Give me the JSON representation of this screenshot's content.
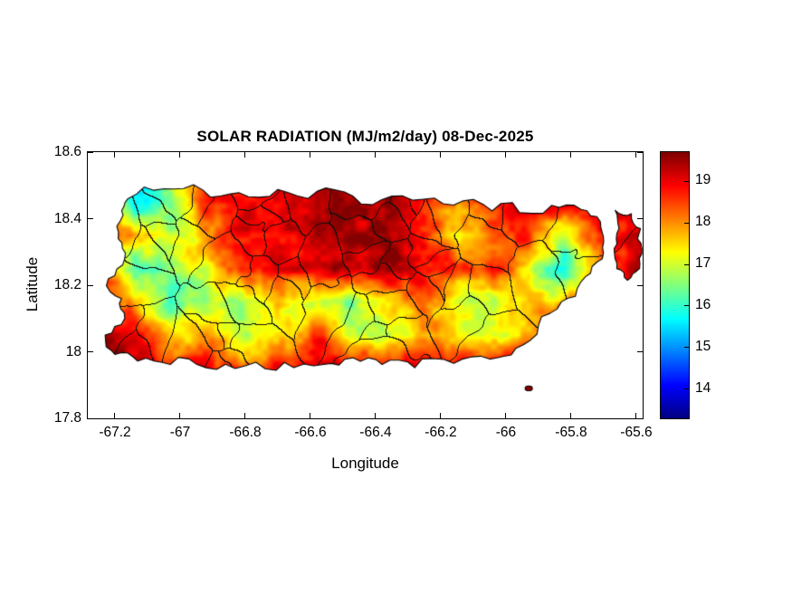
{
  "figure": {
    "title": "SOLAR RADIATION (MJ/m2/day) 08-Dec-2025",
    "xlabel": "Longitude",
    "ylabel": "Latitude"
  },
  "axes": {
    "xlim": [
      -67.2833,
      -65.5805
    ],
    "ylim": [
      17.8,
      18.6
    ],
    "xticks": [
      -67.2,
      -67.0,
      -66.8,
      -66.6,
      -66.4,
      -66.2,
      -66.0,
      -65.8,
      -65.6
    ],
    "xtick_labels": [
      "-67.2",
      "-67",
      "-66.8",
      "-66.6",
      "-66.4",
      "-66.2",
      "-66",
      "-65.8",
      "-65.6"
    ],
    "yticks": [
      17.8,
      18.0,
      18.2,
      18.4,
      18.6
    ],
    "ytick_labels": [
      "17.8",
      "18",
      "18.2",
      "18.4",
      "18.6"
    ]
  },
  "colorbar": {
    "colormap": "jet",
    "clim": [
      13.3,
      19.7
    ],
    "tick_values": [
      14,
      15,
      16,
      17,
      18,
      19
    ],
    "tick_labels": [
      "14",
      "15",
      "16",
      "17",
      "18",
      "19"
    ]
  },
  "chart_data": {
    "type": "heatmap",
    "title": "SOLAR RADIATION (MJ/m2/day) 08-Dec-2025",
    "quantity": "solar radiation",
    "units": "MJ/m2/day",
    "date": "08-Dec-2025",
    "region": "Puerto Rico",
    "overlay": "municipality-boundaries",
    "value_range_shown": [
      14,
      19
    ],
    "grid_lon": [
      -67.25,
      -67.14,
      -67.03,
      -66.92,
      -66.81,
      -66.7,
      -66.59,
      -66.48,
      -66.37,
      -66.26,
      -66.15,
      -66.04,
      -65.93,
      -65.82,
      -65.71,
      -65.6
    ],
    "grid_lat": [
      18.45,
      18.35,
      18.25,
      18.15,
      18.05,
      17.95
    ],
    "values": [
      [
        19.0,
        15.8,
        17.0,
        19.0,
        19.2,
        19.3,
        19.3,
        19.2,
        19.3,
        19.0,
        18.6,
        19.0,
        19.2,
        19.0,
        18.8,
        19.0
      ],
      [
        18.8,
        17.5,
        16.8,
        17.8,
        18.8,
        19.3,
        19.4,
        19.3,
        19.2,
        18.4,
        17.4,
        18.2,
        18.8,
        16.8,
        18.4,
        18.8
      ],
      [
        19.0,
        15.6,
        16.6,
        17.2,
        18.6,
        19.2,
        19.4,
        19.4,
        19.2,
        18.8,
        18.2,
        18.8,
        17.6,
        15.6,
        17.8,
        19.0
      ],
      [
        19.0,
        17.6,
        16.2,
        17.0,
        16.6,
        18.2,
        17.0,
        16.4,
        17.6,
        18.2,
        16.8,
        17.2,
        18.2,
        17.8,
        18.8,
        19.2
      ],
      [
        19.2,
        18.6,
        17.6,
        18.2,
        17.0,
        17.6,
        18.6,
        17.0,
        16.6,
        17.2,
        17.6,
        16.8,
        17.8,
        19.0,
        19.2,
        19.3
      ],
      [
        19.3,
        19.2,
        19.0,
        19.2,
        18.8,
        19.0,
        19.2,
        18.8,
        18.6,
        18.8,
        19.0,
        19.2,
        19.3,
        19.3,
        19.2,
        19.2
      ]
    ],
    "outline_main": [
      [
        -67.16,
        18.46
      ],
      [
        -67.05,
        18.49
      ],
      [
        -66.93,
        18.486
      ],
      [
        -66.82,
        18.478
      ],
      [
        -66.7,
        18.488
      ],
      [
        -66.58,
        18.482
      ],
      [
        -66.47,
        18.468
      ],
      [
        -66.35,
        18.468
      ],
      [
        -66.22,
        18.462
      ],
      [
        -66.1,
        18.458
      ],
      [
        -65.98,
        18.448
      ],
      [
        -65.86,
        18.44
      ],
      [
        -65.77,
        18.428
      ],
      [
        -65.71,
        18.39
      ],
      [
        -65.7,
        18.33
      ],
      [
        -65.72,
        18.27
      ],
      [
        -65.77,
        18.21
      ],
      [
        -65.83,
        18.15
      ],
      [
        -65.9,
        18.08
      ],
      [
        -65.97,
        18.01
      ],
      [
        -66.05,
        17.978
      ],
      [
        -66.16,
        17.965
      ],
      [
        -66.28,
        17.952
      ],
      [
        -66.38,
        17.962
      ],
      [
        -66.47,
        17.982
      ],
      [
        -66.56,
        17.962
      ],
      [
        -66.68,
        17.968
      ],
      [
        -66.8,
        17.958
      ],
      [
        -66.92,
        17.952
      ],
      [
        -67.03,
        17.962
      ],
      [
        -67.13,
        17.972
      ],
      [
        -67.2,
        17.992
      ],
      [
        -67.23,
        18.05
      ],
      [
        -67.17,
        18.1
      ],
      [
        -67.18,
        18.16
      ],
      [
        -67.22,
        18.22
      ],
      [
        -67.17,
        18.28
      ],
      [
        -67.19,
        18.34
      ],
      [
        -67.175,
        18.41
      ]
    ],
    "outline_east": [
      [
        -65.665,
        18.425
      ],
      [
        -65.615,
        18.415
      ],
      [
        -65.587,
        18.37
      ],
      [
        -65.583,
        18.31
      ],
      [
        -65.59,
        18.25
      ],
      [
        -65.627,
        18.215
      ],
      [
        -65.66,
        18.25
      ],
      [
        -65.668,
        18.31
      ],
      [
        -65.653,
        18.37
      ]
    ],
    "islet": [
      -65.93,
      17.89
    ]
  }
}
